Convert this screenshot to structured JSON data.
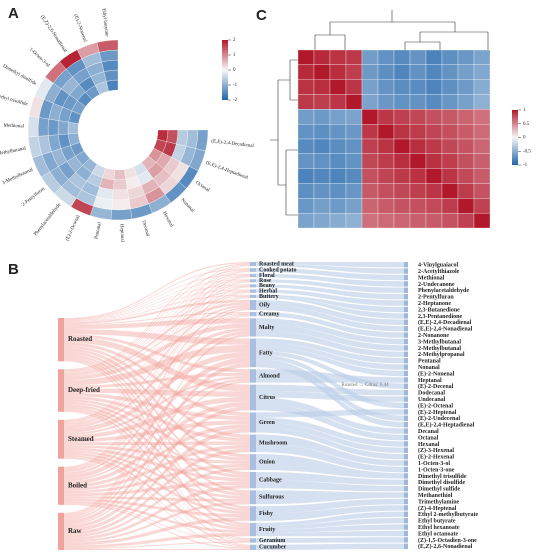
{
  "panels": {
    "a": "A",
    "b": "B",
    "c": "C"
  },
  "chart_data": [
    {
      "type": "circular-heatmap",
      "rows": [
        "(E,E)-2,4-Decadienal",
        "(E,E)-2,4-Heptadienal",
        "Octanal",
        "Nonanal",
        "Hexanal",
        "Decanal",
        "Heptanal",
        "Pentanal",
        "(E)-2-Octenal",
        "Phenylacetaldehyde",
        "2-Pentylfuran",
        "3-Methylbutanal",
        "2-Methylbutanal",
        "Methional",
        "Dimethyl trisulfide",
        "Dimethyl disulfide",
        "1-Octen-3-ol",
        "(E,Z)-2,6-Nonadienal",
        "(E)-2-Nonenal",
        "Ethyl butyrate"
      ],
      "values": [
        [
          1.8,
          1.5,
          -0.6,
          -0.8,
          -1.2
        ],
        [
          1.6,
          1.7,
          -0.5,
          -0.9,
          -1.1
        ],
        [
          0.9,
          0.7,
          0.4,
          0.2,
          -1.5
        ],
        [
          0.6,
          0.8,
          0.5,
          0.3,
          -1.4
        ],
        [
          -0.3,
          -0.2,
          0.6,
          0.9,
          -1.0
        ],
        [
          0.2,
          0.1,
          0.3,
          0.4,
          -1.3
        ],
        [
          0.5,
          0.4,
          0.2,
          0.1,
          -1.2
        ],
        [
          0.3,
          0.6,
          -0.2,
          -0.1,
          -0.9
        ],
        [
          -0.4,
          -0.6,
          -0.8,
          -0.7,
          1.6
        ],
        [
          -0.9,
          -1.0,
          -0.7,
          -0.8,
          -0.4
        ],
        [
          -1.1,
          -0.9,
          -1.2,
          -1.0,
          -0.6
        ],
        [
          -1.3,
          -1.2,
          -0.9,
          -1.1,
          -0.8
        ],
        [
          -1.0,
          -1.4,
          -1.1,
          -0.7,
          -0.5
        ],
        [
          -0.8,
          -1.1,
          -1.3,
          -1.2,
          -0.3
        ],
        [
          -1.4,
          -1.2,
          -1.0,
          -1.3,
          0.2
        ],
        [
          -1.2,
          -1.3,
          -1.4,
          -1.0,
          -0.2
        ],
        [
          -1.5,
          -1.1,
          -0.9,
          -1.2,
          1.2
        ],
        [
          -1.3,
          -1.5,
          -1.2,
          -1.4,
          1.9
        ],
        [
          -0.7,
          -0.9,
          -1.0,
          -0.8,
          0.8
        ],
        [
          -1.6,
          -1.4,
          -1.5,
          -1.3,
          1.4
        ]
      ],
      "clim": [
        -2,
        2
      ],
      "cticks": [
        2,
        1,
        0,
        -1,
        -2
      ]
    },
    {
      "type": "sankey",
      "sources": [
        "Roasted",
        "Deep-fried",
        "Steamed",
        "Boiled",
        "Raw"
      ],
      "odors": [
        "Roasted meat",
        "Cooked potato",
        "Floral",
        "Rose",
        "Beany",
        "Herbal",
        "Buttery",
        "Oily",
        "Creamy",
        "Malty",
        "Fatty",
        "Almond",
        "Citrus",
        "Green",
        "Mushroom",
        "Onion",
        "Cabbage",
        "Sulfurous",
        "Fishy",
        "Fruity",
        "Geranium",
        "Cucumber"
      ],
      "flows": [
        [
          1.2,
          0.8,
          0.6,
          0.5,
          0.6,
          0.5,
          0.7,
          2.1,
          1.0,
          4.8,
          5.9,
          3.2,
          6.44,
          3.5,
          3.1,
          3.3,
          3.0,
          2.6,
          2.2,
          2.4,
          0.8,
          0.9
        ],
        [
          1.0,
          0.9,
          0.5,
          0.6,
          0.5,
          0.6,
          0.8,
          2.4,
          0.9,
          4.2,
          6.8,
          3.0,
          5.1,
          3.8,
          3.4,
          3.0,
          2.8,
          2.9,
          2.5,
          2.1,
          0.7,
          0.8
        ],
        [
          0.7,
          0.6,
          0.7,
          0.5,
          0.6,
          0.7,
          0.5,
          1.8,
          0.8,
          3.1,
          5.2,
          2.4,
          4.6,
          3.9,
          3.2,
          2.9,
          3.1,
          2.5,
          2.8,
          2.6,
          0.9,
          1.0
        ],
        [
          0.6,
          0.7,
          0.6,
          0.6,
          0.5,
          0.6,
          0.6,
          1.7,
          0.7,
          2.9,
          5.0,
          2.2,
          4.3,
          3.7,
          3.3,
          3.0,
          3.2,
          2.7,
          2.9,
          2.5,
          0.8,
          1.1
        ],
        [
          0.4,
          0.5,
          0.8,
          0.7,
          0.7,
          0.8,
          0.4,
          1.5,
          0.6,
          2.2,
          4.1,
          1.9,
          3.8,
          4.1,
          3.6,
          2.7,
          3.3,
          2.4,
          3.4,
          3.0,
          1.0,
          1.2
        ]
      ],
      "compounds": [
        {
          "name": "4-Vinylguaiacol",
          "odor": "Roasted meat"
        },
        {
          "name": "2-Acetylthiazole",
          "odor": "Roasted meat"
        },
        {
          "name": "Methional",
          "odor": "Cooked potato"
        },
        {
          "name": "2-Undecanone",
          "odor": "Floral"
        },
        {
          "name": "Phenylacetaldehyde",
          "odor": "Rose"
        },
        {
          "name": "2-Pentylfuran",
          "odor": "Beany"
        },
        {
          "name": "2-Heptanone",
          "odor": "Herbal"
        },
        {
          "name": "2,3-Butanedione",
          "odor": "Buttery"
        },
        {
          "name": "2,3-Pentanedione",
          "odor": "Buttery"
        },
        {
          "name": "(E,E)-2,4-Decadienal",
          "odor": "Oily"
        },
        {
          "name": "(E,E)-2,4-Nonadienal",
          "odor": "Oily"
        },
        {
          "name": "2-Nonanone",
          "odor": "Creamy"
        },
        {
          "name": "3-Methylbutanal",
          "odor": "Malty"
        },
        {
          "name": "2-Methylbutanal",
          "odor": "Malty"
        },
        {
          "name": "2-Methylpropanal",
          "odor": "Malty"
        },
        {
          "name": "Pentanal",
          "odor": "Fatty"
        },
        {
          "name": "Nonanal",
          "odor": "Fatty"
        },
        {
          "name": "(E)-2-Nonenal",
          "odor": "Fatty"
        },
        {
          "name": "Heptanal",
          "odor": "Almond"
        },
        {
          "name": "(E)-2-Decenal",
          "odor": "Fatty"
        },
        {
          "name": "Dodecanal",
          "odor": "Citrus"
        },
        {
          "name": "Undecanal",
          "odor": "Citrus"
        },
        {
          "name": "(E)-2-Octenal",
          "odor": "Fatty"
        },
        {
          "name": "(E)-2-Heptenal",
          "odor": "Green"
        },
        {
          "name": "(E)-2-Undecenal",
          "odor": "Fatty"
        },
        {
          "name": "(E,E)-2,4-Heptadienal",
          "odor": "Fatty"
        },
        {
          "name": "Decanal",
          "odor": "Citrus"
        },
        {
          "name": "Octanal",
          "odor": "Citrus"
        },
        {
          "name": "Hexanal",
          "odor": "Green"
        },
        {
          "name": "(Z)-3-Hexenal",
          "odor": "Green"
        },
        {
          "name": "(E)-2-Hexenal",
          "odor": "Green"
        },
        {
          "name": "1-Octen-3-ol",
          "odor": "Mushroom"
        },
        {
          "name": "1-Octen-3-one",
          "odor": "Mushroom"
        },
        {
          "name": "Dimethyl trisulfide",
          "odor": "Onion"
        },
        {
          "name": "Dimethyl disulfide",
          "odor": "Cabbage"
        },
        {
          "name": "Dimethyl sulfide",
          "odor": "Cabbage"
        },
        {
          "name": "Methanethiol",
          "odor": "Sulfurous"
        },
        {
          "name": "Trimethylamine",
          "odor": "Fishy"
        },
        {
          "name": "(Z)-4-Heptenal",
          "odor": "Fishy"
        },
        {
          "name": "Ethyl 2-methylbutyrate",
          "odor": "Fruity"
        },
        {
          "name": "Ethyl butyrate",
          "odor": "Fruity"
        },
        {
          "name": "Ethyl hexanoate",
          "odor": "Fruity"
        },
        {
          "name": "Ethyl octanoate",
          "odor": "Fruity"
        },
        {
          "name": "(Z)-1,5-Octadien-3-one",
          "odor": "Geranium"
        },
        {
          "name": "(E,Z)-2,6-Nonadienal",
          "odor": "Cucumber"
        }
      ],
      "tooltip": "Roasted → Citrus: 6.44"
    },
    {
      "type": "correlation-heatmap",
      "values": [
        [
          1,
          0.92,
          0.88,
          0.85,
          -0.62,
          -0.7,
          -0.75,
          -0.68,
          -0.8,
          -0.72,
          -0.66,
          -0.58
        ],
        [
          0.92,
          1,
          0.9,
          0.83,
          -0.65,
          -0.72,
          -0.78,
          -0.7,
          -0.77,
          -0.69,
          -0.61,
          -0.55
        ],
        [
          0.88,
          0.9,
          1,
          0.87,
          -0.6,
          -0.68,
          -0.73,
          -0.74,
          -0.79,
          -0.71,
          -0.64,
          -0.52
        ],
        [
          0.85,
          0.83,
          0.87,
          1,
          -0.58,
          -0.66,
          -0.7,
          -0.69,
          -0.75,
          -0.67,
          -0.6,
          -0.49
        ],
        [
          -0.62,
          -0.65,
          -0.6,
          -0.58,
          1,
          0.86,
          0.82,
          0.79,
          0.75,
          0.71,
          0.66,
          0.6
        ],
        [
          -0.7,
          -0.72,
          -0.68,
          -0.66,
          0.86,
          1,
          0.88,
          0.84,
          0.8,
          0.76,
          0.7,
          0.63
        ],
        [
          -0.75,
          -0.78,
          -0.73,
          -0.7,
          0.82,
          0.88,
          1,
          0.9,
          0.85,
          0.79,
          0.73,
          0.65
        ],
        [
          -0.68,
          -0.7,
          -0.74,
          -0.69,
          0.79,
          0.84,
          0.9,
          1,
          0.89,
          0.83,
          0.75,
          0.68
        ],
        [
          -0.8,
          -0.77,
          -0.79,
          -0.75,
          0.75,
          0.8,
          0.85,
          0.89,
          1,
          0.87,
          0.78,
          0.7
        ],
        [
          -0.72,
          -0.69,
          -0.71,
          -0.67,
          0.71,
          0.76,
          0.79,
          0.83,
          0.87,
          1,
          0.84,
          0.74
        ],
        [
          -0.66,
          -0.61,
          -0.64,
          -0.6,
          0.66,
          0.7,
          0.73,
          0.75,
          0.78,
          0.84,
          1,
          0.81
        ],
        [
          -0.58,
          -0.55,
          -0.52,
          -0.49,
          0.6,
          0.63,
          0.65,
          0.68,
          0.7,
          0.74,
          0.81,
          1
        ]
      ],
      "clim": [
        -1,
        1
      ],
      "cticks": [
        1,
        0.5,
        0,
        -0.5,
        -1
      ]
    }
  ]
}
